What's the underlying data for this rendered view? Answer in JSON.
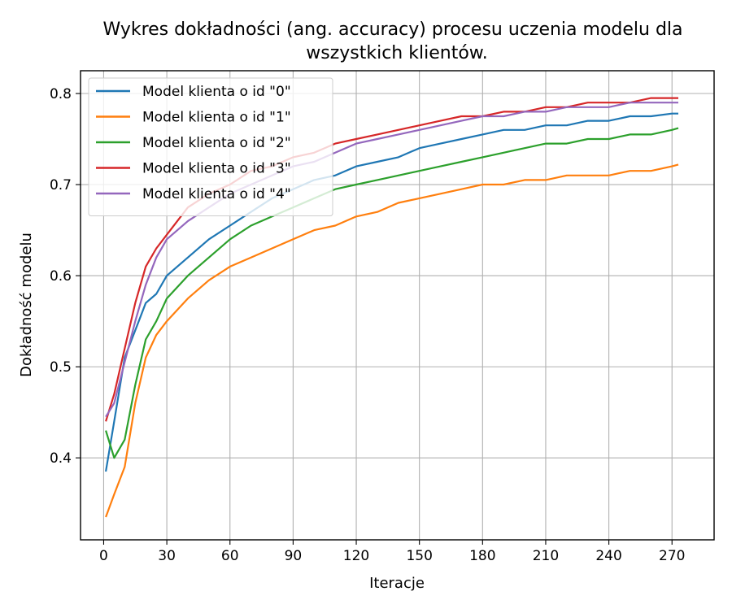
{
  "chart_data": {
    "type": "line",
    "title_line1": "Wykres dokładności (ang. accuracy) procesu uczenia modelu dla",
    "title_line2": "wszystkich klientów.",
    "xlabel": "Iteracje",
    "ylabel": "Dokładność modelu",
    "xlim": [
      -11,
      290
    ],
    "ylim": [
      0.31,
      0.825
    ],
    "x_ticks": [
      0,
      30,
      60,
      90,
      120,
      150,
      180,
      210,
      240,
      270
    ],
    "x_tick_labels": [
      "0",
      "30",
      "60",
      "90",
      "120",
      "150",
      "180",
      "210",
      "240",
      "270"
    ],
    "y_ticks": [
      0.4,
      0.5,
      0.6,
      0.7,
      0.8
    ],
    "y_tick_labels": [
      "0.4",
      "0.5",
      "0.6",
      "0.7",
      "0.8"
    ],
    "grid": true,
    "legend_position": "top-left",
    "x": [
      1,
      5,
      10,
      15,
      20,
      25,
      30,
      40,
      50,
      60,
      70,
      80,
      90,
      100,
      110,
      120,
      130,
      140,
      150,
      160,
      170,
      180,
      190,
      200,
      210,
      220,
      230,
      240,
      250,
      260,
      270,
      273
    ],
    "series": [
      {
        "name": "Model klienta o id \"0\"",
        "color": "#1f77b4",
        "values": [
          0.385,
          0.44,
          0.51,
          0.54,
          0.57,
          0.58,
          0.6,
          0.62,
          0.64,
          0.655,
          0.67,
          0.685,
          0.695,
          0.705,
          0.71,
          0.72,
          0.725,
          0.73,
          0.74,
          0.745,
          0.75,
          0.755,
          0.76,
          0.76,
          0.765,
          0.765,
          0.77,
          0.77,
          0.775,
          0.775,
          0.778,
          0.778
        ]
      },
      {
        "name": "Model klienta o id \"1\"",
        "color": "#ff7f0e",
        "values": [
          0.335,
          0.36,
          0.39,
          0.46,
          0.51,
          0.535,
          0.55,
          0.575,
          0.595,
          0.61,
          0.62,
          0.63,
          0.64,
          0.65,
          0.655,
          0.665,
          0.67,
          0.68,
          0.685,
          0.69,
          0.695,
          0.7,
          0.7,
          0.705,
          0.705,
          0.71,
          0.71,
          0.71,
          0.715,
          0.715,
          0.72,
          0.722
        ]
      },
      {
        "name": "Model klienta o id \"2\"",
        "color": "#2ca02c",
        "values": [
          0.43,
          0.4,
          0.42,
          0.48,
          0.53,
          0.55,
          0.575,
          0.6,
          0.62,
          0.64,
          0.655,
          0.665,
          0.675,
          0.685,
          0.695,
          0.7,
          0.705,
          0.71,
          0.715,
          0.72,
          0.725,
          0.73,
          0.735,
          0.74,
          0.745,
          0.745,
          0.75,
          0.75,
          0.755,
          0.755,
          0.76,
          0.762
        ]
      },
      {
        "name": "Model klienta o id \"3\"",
        "color": "#d62728",
        "values": [
          0.44,
          0.47,
          0.52,
          0.57,
          0.61,
          0.63,
          0.645,
          0.675,
          0.69,
          0.7,
          0.715,
          0.72,
          0.73,
          0.735,
          0.745,
          0.75,
          0.755,
          0.76,
          0.765,
          0.77,
          0.775,
          0.775,
          0.78,
          0.78,
          0.785,
          0.785,
          0.79,
          0.79,
          0.79,
          0.795,
          0.795,
          0.795
        ]
      },
      {
        "name": "Model klienta o id \"4\"",
        "color": "#9467bd",
        "values": [
          0.445,
          0.46,
          0.505,
          0.55,
          0.59,
          0.62,
          0.64,
          0.66,
          0.675,
          0.69,
          0.7,
          0.71,
          0.72,
          0.725,
          0.735,
          0.745,
          0.75,
          0.755,
          0.76,
          0.765,
          0.77,
          0.775,
          0.775,
          0.78,
          0.78,
          0.785,
          0.785,
          0.785,
          0.79,
          0.79,
          0.79,
          0.79
        ]
      }
    ]
  }
}
